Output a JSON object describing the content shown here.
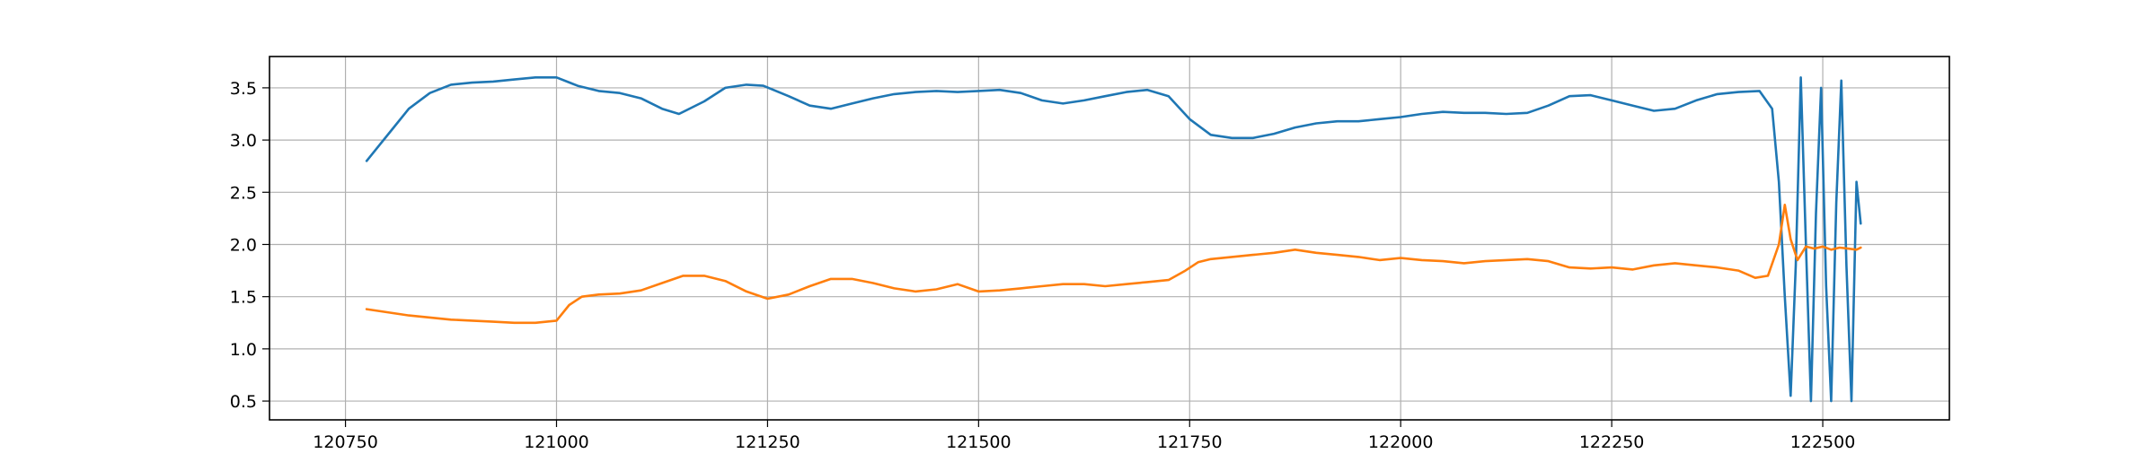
{
  "chart_data": {
    "type": "line",
    "title": "",
    "xlabel": "",
    "ylabel": "",
    "xlim": [
      120660,
      122650
    ],
    "ylim": [
      0.32,
      3.8
    ],
    "grid": true,
    "x_ticks": [
      120750,
      121000,
      121250,
      121500,
      121750,
      122000,
      122250,
      122500
    ],
    "y_ticks": [
      0.5,
      1.0,
      1.5,
      2.0,
      2.5,
      3.0,
      3.5
    ],
    "x_tick_labels": [
      "120750",
      "121000",
      "121250",
      "121500",
      "121750",
      "122000",
      "122250",
      "122500"
    ],
    "y_tick_labels": [
      "0.5",
      "1.0",
      "1.5",
      "2.0",
      "2.5",
      "3.0",
      "3.5"
    ],
    "series": [
      {
        "color": "#1f77b4",
        "x": [
          120775,
          120790,
          120805,
          120825,
          120850,
          120875,
          120900,
          120925,
          120950,
          120975,
          121000,
          121025,
          121050,
          121075,
          121100,
          121125,
          121145,
          121175,
          121200,
          121225,
          121245,
          121275,
          121300,
          121325,
          121350,
          121375,
          121400,
          121425,
          121450,
          121475,
          121500,
          121525,
          121550,
          121575,
          121600,
          121625,
          121650,
          121675,
          121700,
          121725,
          121750,
          121775,
          121800,
          121825,
          121850,
          121875,
          121900,
          121925,
          121950,
          121975,
          122000,
          122025,
          122050,
          122075,
          122100,
          122125,
          122150,
          122175,
          122200,
          122225,
          122250,
          122275,
          122300,
          122325,
          122350,
          122375,
          122400,
          122425,
          122440,
          122448,
          122455,
          122462,
          122468,
          122474,
          122480,
          122486,
          122492,
          122498,
          122504,
          122510,
          122516,
          122522,
          122528,
          122534,
          122540,
          122545
        ],
        "values": [
          2.8,
          2.95,
          3.1,
          3.3,
          3.45,
          3.53,
          3.55,
          3.56,
          3.58,
          3.6,
          3.6,
          3.52,
          3.47,
          3.45,
          3.4,
          3.3,
          3.25,
          3.37,
          3.5,
          3.53,
          3.52,
          3.42,
          3.33,
          3.3,
          3.35,
          3.4,
          3.44,
          3.46,
          3.47,
          3.46,
          3.47,
          3.48,
          3.45,
          3.38,
          3.35,
          3.38,
          3.42,
          3.46,
          3.48,
          3.42,
          3.2,
          3.05,
          3.02,
          3.02,
          3.06,
          3.12,
          3.16,
          3.18,
          3.18,
          3.2,
          3.22,
          3.25,
          3.27,
          3.26,
          3.26,
          3.25,
          3.26,
          3.33,
          3.42,
          3.43,
          3.38,
          3.33,
          3.28,
          3.3,
          3.38,
          3.44,
          3.46,
          3.47,
          3.3,
          2.6,
          1.5,
          0.55,
          1.8,
          3.6,
          2.0,
          0.5,
          2.3,
          3.5,
          1.6,
          0.5,
          2.4,
          3.57,
          1.8,
          0.5,
          2.6,
          2.2
        ]
      },
      {
        "color": "#ff7f0e",
        "x": [
          120775,
          120800,
          120825,
          120850,
          120875,
          120900,
          120925,
          120950,
          120975,
          121000,
          121015,
          121030,
          121050,
          121075,
          121100,
          121125,
          121150,
          121175,
          121200,
          121225,
          121250,
          121275,
          121300,
          121325,
          121350,
          121375,
          121400,
          121425,
          121450,
          121475,
          121500,
          121525,
          121550,
          121575,
          121600,
          121625,
          121650,
          121675,
          121700,
          121725,
          121745,
          121760,
          121775,
          121800,
          121825,
          121850,
          121875,
          121900,
          121925,
          121950,
          121975,
          122000,
          122025,
          122050,
          122075,
          122100,
          122125,
          122150,
          122175,
          122200,
          122225,
          122250,
          122275,
          122300,
          122325,
          122350,
          122375,
          122400,
          122420,
          122435,
          122448,
          122455,
          122462,
          122470,
          122480,
          122490,
          122500,
          122510,
          122520,
          122530,
          122540,
          122545
        ],
        "values": [
          1.38,
          1.35,
          1.32,
          1.3,
          1.28,
          1.27,
          1.26,
          1.25,
          1.25,
          1.27,
          1.42,
          1.5,
          1.52,
          1.53,
          1.56,
          1.63,
          1.7,
          1.7,
          1.65,
          1.55,
          1.48,
          1.52,
          1.6,
          1.67,
          1.67,
          1.63,
          1.58,
          1.55,
          1.57,
          1.62,
          1.55,
          1.56,
          1.58,
          1.6,
          1.62,
          1.62,
          1.6,
          1.62,
          1.64,
          1.66,
          1.75,
          1.83,
          1.86,
          1.88,
          1.9,
          1.92,
          1.95,
          1.92,
          1.9,
          1.88,
          1.85,
          1.87,
          1.85,
          1.84,
          1.82,
          1.84,
          1.85,
          1.86,
          1.84,
          1.78,
          1.77,
          1.78,
          1.76,
          1.8,
          1.82,
          1.8,
          1.78,
          1.75,
          1.68,
          1.7,
          2.0,
          2.38,
          2.05,
          1.85,
          1.98,
          1.96,
          1.98,
          1.95,
          1.97,
          1.96,
          1.95,
          1.97
        ]
      }
    ]
  }
}
